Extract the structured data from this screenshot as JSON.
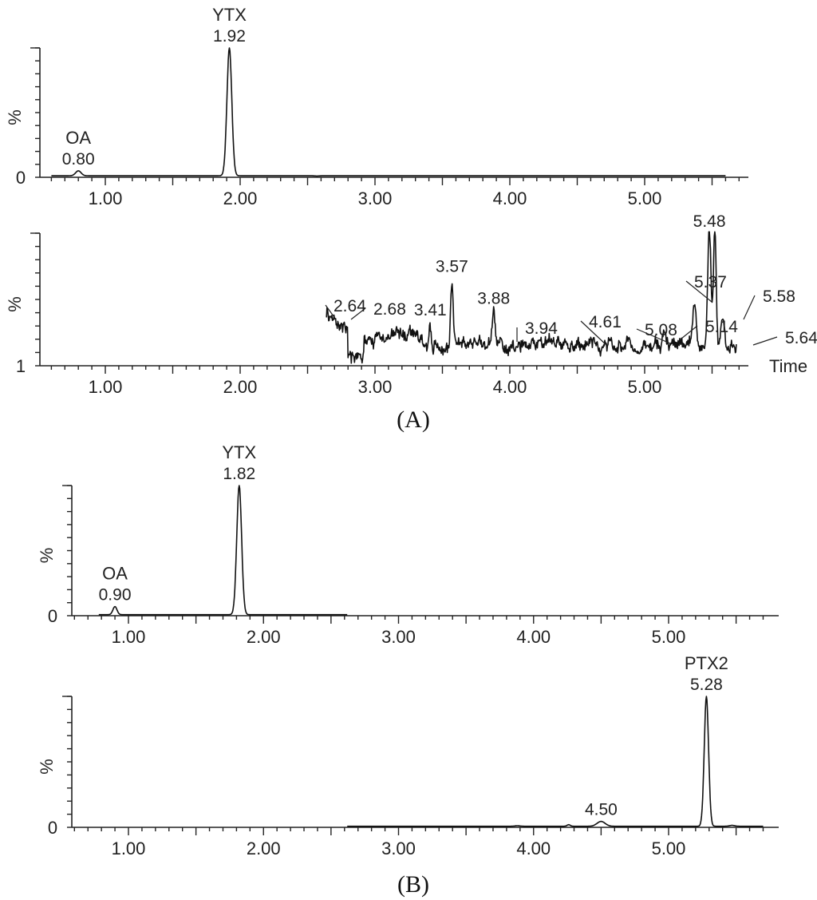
{
  "chart_data": [
    {
      "type": "line",
      "panel": "A",
      "ylabel": "%",
      "y_bottom_label": "0",
      "xlim": [
        0.55,
        5.7
      ],
      "x_ticks": [
        "1.00",
        "2.00",
        "3.00",
        "4.00",
        "5.00"
      ],
      "x_axis_title": "",
      "trace_start": 0.6,
      "trace_end": 5.6,
      "baseline": 0.012,
      "noise_range": null,
      "peaks": [
        {
          "rt": 0.8,
          "height": 0.05,
          "width": 0.02,
          "label": "0.80",
          "compound": "OA"
        },
        {
          "rt": 1.92,
          "height": 1.0,
          "width": 0.018,
          "label": "1.92",
          "compound": "YTX"
        },
        {
          "rt": 2.57,
          "height": 0.01,
          "width": 0.02,
          "label": "",
          "compound": ""
        }
      ]
    },
    {
      "type": "line",
      "panel": "A",
      "ylabel": "%",
      "y_bottom_label": "1",
      "xlim": [
        0.55,
        5.7
      ],
      "x_ticks": [
        "1.00",
        "2.00",
        "3.00",
        "4.00",
        "5.00"
      ],
      "x_axis_title": "Time",
      "trace_start": 2.64,
      "trace_end": 5.68,
      "baseline": 0.16,
      "noise_range": [
        2.64,
        5.68
      ],
      "peaks": [
        {
          "rt": 2.64,
          "height": 0.36,
          "width": 0.01,
          "label": "2.64",
          "compound": ""
        },
        {
          "rt": 2.68,
          "height": 0.3,
          "width": 0.012,
          "label": "2.68",
          "compound": ""
        },
        {
          "rt": 3.41,
          "height": 0.33,
          "width": 0.008,
          "label": "3.41",
          "compound": ""
        },
        {
          "rt": 3.57,
          "height": 0.66,
          "width": 0.01,
          "label": "3.57",
          "compound": ""
        },
        {
          "rt": 3.88,
          "height": 0.42,
          "width": 0.01,
          "label": "3.88",
          "compound": ""
        },
        {
          "rt": 3.94,
          "height": 0.22,
          "width": 0.01,
          "label": "3.94",
          "compound": ""
        },
        {
          "rt": 4.61,
          "height": 0.18,
          "width": 0.01,
          "label": "4.61",
          "compound": ""
        },
        {
          "rt": 5.08,
          "height": 0.2,
          "width": 0.01,
          "label": "5.08",
          "compound": ""
        },
        {
          "rt": 5.14,
          "height": 0.28,
          "width": 0.01,
          "label": "5.14",
          "compound": ""
        },
        {
          "rt": 5.37,
          "height": 0.46,
          "width": 0.014,
          "label": "5.37",
          "compound": ""
        },
        {
          "rt": 5.48,
          "height": 1.0,
          "width": 0.012,
          "label": "5.48",
          "compound": ""
        },
        {
          "rt": 5.52,
          "height": 0.98,
          "width": 0.01,
          "label": "",
          "compound": ""
        },
        {
          "rt": 5.58,
          "height": 0.36,
          "width": 0.01,
          "label": "5.58",
          "compound": ""
        },
        {
          "rt": 5.64,
          "height": 0.18,
          "width": 0.01,
          "label": "5.64",
          "compound": ""
        }
      ]
    },
    {
      "type": "line",
      "panel": "B",
      "ylabel": "%",
      "y_bottom_label": "0",
      "xlim": [
        0.55,
        5.7
      ],
      "x_ticks": [
        "1.00",
        "2.00",
        "3.00",
        "4.00",
        "5.00"
      ],
      "x_axis_title": "",
      "trace_start": 0.78,
      "trace_end": 2.62,
      "baseline": 0.008,
      "noise_range": null,
      "peaks": [
        {
          "rt": 0.9,
          "height": 0.07,
          "width": 0.015,
          "label": "0.90",
          "compound": "OA"
        },
        {
          "rt": 1.82,
          "height": 1.0,
          "width": 0.018,
          "label": "1.82",
          "compound": "YTX"
        }
      ]
    },
    {
      "type": "line",
      "panel": "B",
      "ylabel": "%",
      "y_bottom_label": "0",
      "xlim": [
        0.55,
        5.7
      ],
      "x_ticks": [
        "1.00",
        "2.00",
        "3.00",
        "4.00",
        "5.00"
      ],
      "x_axis_title": "",
      "trace_start": 2.62,
      "trace_end": 5.7,
      "baseline": 0.008,
      "noise_range": null,
      "peaks": [
        {
          "rt": 3.88,
          "height": 0.012,
          "width": 0.02,
          "label": "",
          "compound": ""
        },
        {
          "rt": 4.26,
          "height": 0.02,
          "width": 0.012,
          "label": "",
          "compound": ""
        },
        {
          "rt": 4.5,
          "height": 0.045,
          "width": 0.03,
          "label": "4.50",
          "compound": ""
        },
        {
          "rt": 5.28,
          "height": 1.0,
          "width": 0.016,
          "label": "5.28",
          "compound": "PTX2"
        },
        {
          "rt": 5.47,
          "height": 0.015,
          "width": 0.02,
          "label": "",
          "compound": ""
        }
      ]
    }
  ],
  "panel_labels": {
    "a": "(A)",
    "b": "(B)"
  }
}
